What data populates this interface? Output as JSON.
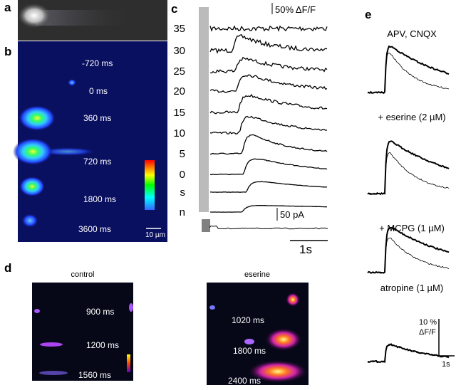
{
  "panels": {
    "a": {
      "label": "a"
    },
    "b": {
      "label": "b",
      "times": [
        "-720 ms",
        "0 ms",
        "360 ms",
        "720 ms",
        "1800 ms",
        "3600 ms"
      ],
      "scale": "10 µm"
    },
    "c": {
      "label": "c",
      "scale_f": "50% ΔF/F",
      "rows": [
        "35",
        "30",
        "25",
        "20",
        "15",
        "10",
        "5",
        "0",
        "s",
        "n"
      ],
      "scale_i": "50 pA",
      "scale_t": "1s"
    },
    "d": {
      "label": "d",
      "control": {
        "title": "control",
        "times": [
          "900 ms",
          "1200 ms",
          "1560 ms"
        ]
      },
      "eserine": {
        "title": "eserine",
        "times": [
          "1020 ms",
          "1800 ms",
          "2400 ms"
        ]
      }
    },
    "e": {
      "label": "e",
      "conditions": [
        "APV, CNQX",
        "+ eserine (2 µM)",
        "+ MCPG (1 µM)",
        "atropine (1 µM)"
      ],
      "scale_f": "10 %",
      "scale_f_unit": "ΔF/F",
      "scale_t": "1s"
    }
  }
}
